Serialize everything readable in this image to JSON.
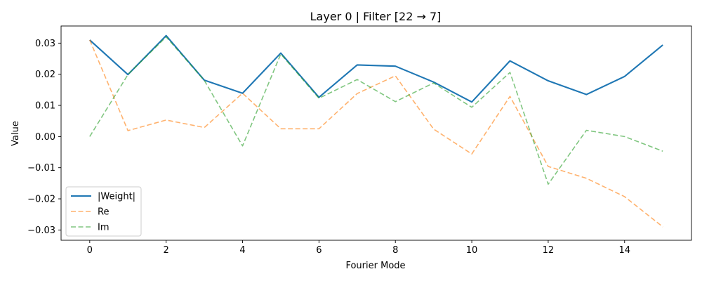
{
  "chart_data": {
    "type": "line",
    "title": "Layer 0 | Filter [22 → 7]",
    "xlabel": "Fourier Mode",
    "ylabel": "Value",
    "xlim": [
      -0.75,
      15.75
    ],
    "ylim": [
      -0.0333,
      0.0355
    ],
    "xticks": [
      0,
      2,
      4,
      6,
      8,
      10,
      12,
      14
    ],
    "xtick_labels": [
      "0",
      "2",
      "4",
      "6",
      "8",
      "10",
      "12",
      "14"
    ],
    "yticks": [
      -0.03,
      -0.02,
      -0.01,
      0.0,
      0.01,
      0.02,
      0.03
    ],
    "ytick_labels": [
      "−0.03",
      "−0.02",
      "−0.01",
      "0.00",
      "0.01",
      "0.02",
      "0.03"
    ],
    "grid": false,
    "legend_position": "lower-left",
    "x": [
      0,
      1,
      2,
      3,
      4,
      5,
      6,
      7,
      8,
      9,
      10,
      11,
      12,
      13,
      14,
      15
    ],
    "series": [
      {
        "name": "|Weight|",
        "color": "#1f77b4",
        "style": "solid",
        "values": [
          0.031,
          0.0199,
          0.0324,
          0.0181,
          0.0139,
          0.0268,
          0.0126,
          0.023,
          0.0226,
          0.0175,
          0.0111,
          0.0243,
          0.0179,
          0.0135,
          0.0193,
          0.0294
        ]
      },
      {
        "name": "Re",
        "color": "#ff7f0e",
        "style": "dashed",
        "values": [
          0.031,
          0.0019,
          0.0053,
          0.0029,
          0.0139,
          0.0025,
          0.0025,
          0.0138,
          0.0195,
          0.0024,
          -0.0056,
          0.0129,
          -0.0096,
          -0.0134,
          -0.0193,
          -0.029
        ]
      },
      {
        "name": "Im",
        "color": "#2ca02c",
        "style": "dashed",
        "values": [
          0.0,
          0.0199,
          0.032,
          0.018,
          -0.003,
          0.0265,
          0.0123,
          0.0183,
          0.0112,
          0.0172,
          0.0094,
          0.0206,
          -0.0153,
          0.002,
          0.0,
          -0.0047
        ]
      }
    ]
  }
}
